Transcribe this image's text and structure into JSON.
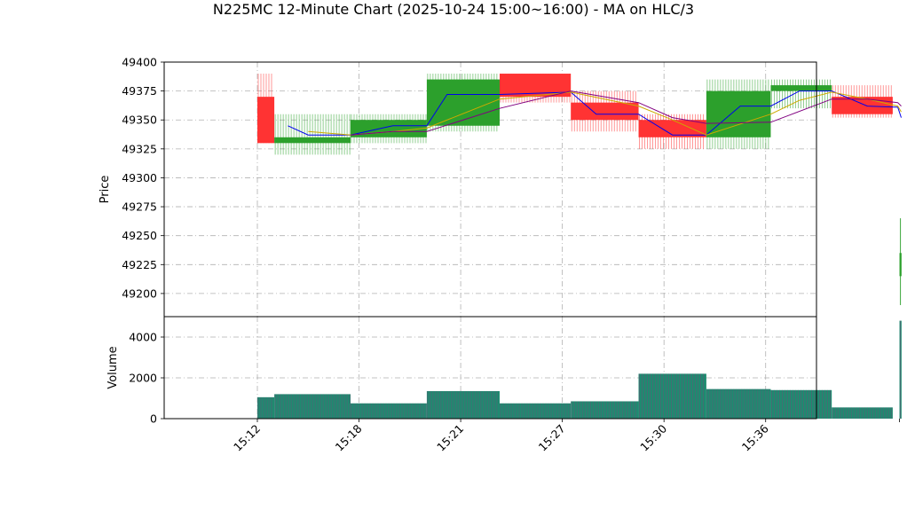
{
  "chart_data": [
    {
      "type": "candlestick",
      "title": "N225MC 12-Minute Chart (2025-10-24 15:00~16:00) - MA on HLC/3",
      "ylabel": "Price",
      "ylim": [
        49180,
        49400
      ],
      "yticks": [
        49200,
        49225,
        49250,
        49275,
        49300,
        49325,
        49350,
        49375,
        49400
      ],
      "x_index_range": [
        -0.55,
        3.3
      ],
      "grid": true,
      "up_color": "#2ca02c",
      "down_color": "#ff3333",
      "bars": [
        {
          "x": 0.0,
          "w": 0.1,
          "open": 49370,
          "high": 49390,
          "low": 49330,
          "close": 49330
        },
        {
          "x": 0.1,
          "w": 0.45,
          "open": 49330,
          "high": 49355,
          "low": 49320,
          "close": 49335
        },
        {
          "x": 0.55,
          "w": 0.45,
          "open": 49335,
          "high": 49355,
          "low": 49330,
          "close": 49350
        },
        {
          "x": 1.0,
          "w": 0.43,
          "open": 49345,
          "high": 49390,
          "low": 49340,
          "close": 49385
        },
        {
          "x": 1.43,
          "w": 0.42,
          "open": 49390,
          "high": 49390,
          "low": 49365,
          "close": 49370
        },
        {
          "x": 1.85,
          "w": 0.4,
          "open": 49365,
          "high": 49375,
          "low": 49340,
          "close": 49350
        },
        {
          "x": 2.25,
          "w": 0.4,
          "open": 49350,
          "high": 49355,
          "low": 49325,
          "close": 49335
        },
        {
          "x": 2.65,
          "w": 0.38,
          "open": 49335,
          "high": 49385,
          "low": 49325,
          "close": 49375
        },
        {
          "x": 3.03,
          "w": 0.36,
          "open": 49375,
          "high": 49385,
          "low": 49360,
          "close": 49380
        },
        {
          "x": 3.39,
          "w": 0.36,
          "open": 49370,
          "high": 49380,
          "low": 49352,
          "close": 49355
        },
        {
          "x": 3.79,
          "w": 0.012,
          "open": 49215,
          "high": 49265,
          "low": 49190,
          "close": 49235
        }
      ],
      "moving_averages": [
        {
          "color": "#0000ee",
          "points": [
            [
              0.18,
              49345
            ],
            [
              0.3,
              49337
            ],
            [
              0.55,
              49337
            ],
            [
              0.8,
              49345
            ],
            [
              1.0,
              49345
            ],
            [
              1.12,
              49372
            ],
            [
              1.43,
              49372
            ],
            [
              1.85,
              49374
            ],
            [
              2.0,
              49355
            ],
            [
              2.25,
              49355
            ],
            [
              2.45,
              49337
            ],
            [
              2.65,
              49337
            ],
            [
              2.85,
              49362
            ],
            [
              3.03,
              49362
            ],
            [
              3.2,
              49375
            ],
            [
              3.39,
              49375
            ],
            [
              3.6,
              49362
            ],
            [
              3.78,
              49361
            ],
            [
              3.8,
              49352
            ]
          ]
        },
        {
          "color": "#ccaa00",
          "points": [
            [
              0.3,
              49340
            ],
            [
              0.55,
              49337
            ],
            [
              0.8,
              49340
            ],
            [
              1.0,
              49343
            ],
            [
              1.43,
              49368
            ],
            [
              1.85,
              49374
            ],
            [
              2.25,
              49362
            ],
            [
              2.45,
              49350
            ],
            [
              2.65,
              49337
            ],
            [
              3.03,
              49355
            ],
            [
              3.2,
              49367
            ],
            [
              3.39,
              49374
            ],
            [
              3.6,
              49368
            ],
            [
              3.78,
              49362
            ],
            [
              3.8,
              49357
            ]
          ]
        },
        {
          "color": "#800080",
          "points": [
            [
              0.55,
              49337
            ],
            [
              0.8,
              49340
            ],
            [
              1.0,
              49340
            ],
            [
              1.43,
              49360
            ],
            [
              1.85,
              49375
            ],
            [
              2.25,
              49365
            ],
            [
              2.45,
              49352
            ],
            [
              2.65,
              49347
            ],
            [
              3.03,
              49348
            ],
            [
              3.39,
              49368
            ],
            [
              3.6,
              49368
            ],
            [
              3.78,
              49365
            ],
            [
              3.8,
              49362
            ]
          ]
        }
      ]
    },
    {
      "type": "bar",
      "ylabel": "Volume",
      "ylim": [
        0,
        5000
      ],
      "yticks": [
        0,
        2000,
        4000
      ],
      "x_tick_positions": [
        0.0,
        0.6,
        1.2,
        1.8,
        2.4,
        3.0
      ],
      "x_tick_labels": [
        "15:12",
        "15:18",
        "15:21",
        "15:27",
        "15:30",
        "15:36"
      ],
      "bars": [
        {
          "x": 0.0,
          "w": 0.1,
          "value": 1050,
          "color": "#2ca02c"
        },
        {
          "x": 0.1,
          "w": 0.45,
          "value": 1200,
          "color": "#2ca02c"
        },
        {
          "x": 0.55,
          "w": 0.45,
          "value": 750,
          "color": "#2ca02c"
        },
        {
          "x": 1.0,
          "w": 0.43,
          "value": 1350,
          "color": "#2ca02c"
        },
        {
          "x": 1.43,
          "w": 0.42,
          "value": 750,
          "color": "#2ca02c"
        },
        {
          "x": 1.85,
          "w": 0.4,
          "value": 850,
          "color": "#2ca02c"
        },
        {
          "x": 2.25,
          "w": 0.4,
          "value": 2200,
          "color": "#2ca02c"
        },
        {
          "x": 2.65,
          "w": 0.38,
          "value": 1450,
          "color": "#2ca02c"
        },
        {
          "x": 3.03,
          "w": 0.36,
          "value": 1400,
          "color": "#2ca02c"
        },
        {
          "x": 3.39,
          "w": 0.36,
          "value": 550,
          "color": "#2ca02c"
        },
        {
          "x": 3.79,
          "w": 0.012,
          "value": 4800,
          "color": "#2ca02c"
        }
      ]
    }
  ]
}
